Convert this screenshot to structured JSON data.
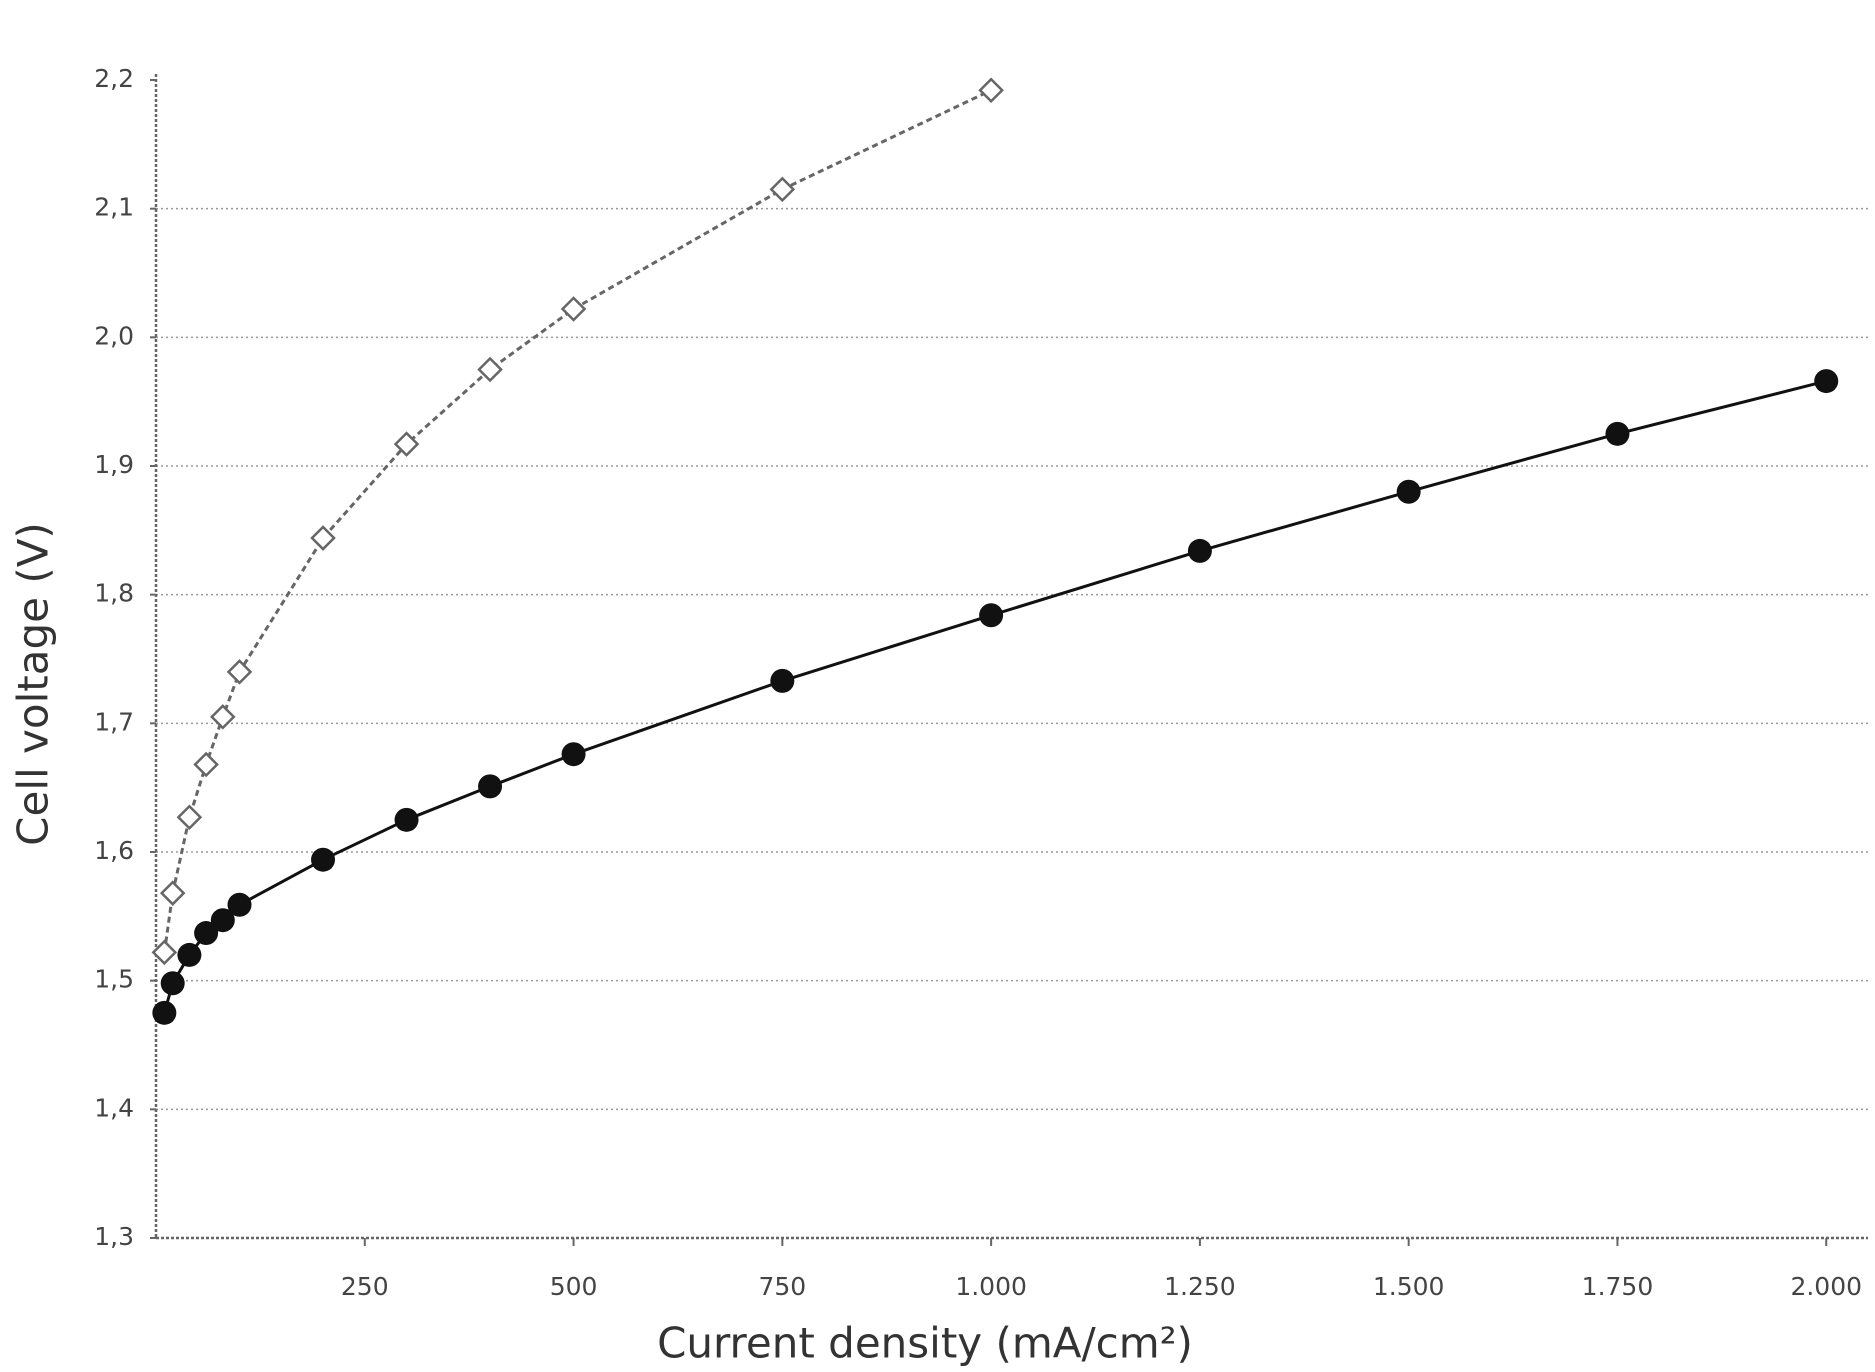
{
  "chart_data": {
    "type": "line",
    "y_label": "Cell voltage (V)",
    "x_label": "Current density (mA/cm²)",
    "xlim": [
      0,
      2050
    ],
    "ylim": [
      1.3,
      2.2
    ],
    "xticks": [
      250,
      500,
      750,
      {
        "value": 1000,
        "label": "1.000"
      },
      {
        "value": 1250,
        "label": "1.250"
      },
      {
        "value": 1500,
        "label": "1.500"
      },
      {
        "value": 1750,
        "label": "1.750"
      },
      {
        "value": 2000,
        "label": "2.000"
      }
    ],
    "yticks": [
      {
        "value": 1.3,
        "label": "1,3"
      },
      {
        "value": 1.4,
        "label": "1,4"
      },
      {
        "value": 1.5,
        "label": "1,5"
      },
      {
        "value": 1.6,
        "label": "1,6"
      },
      {
        "value": 1.7,
        "label": "1,7"
      },
      {
        "value": 1.8,
        "label": "1,8"
      },
      {
        "value": 1.9,
        "label": "1,9"
      },
      {
        "value": 2.0,
        "label": "2,0"
      },
      {
        "value": 2.1,
        "label": "2,1"
      },
      {
        "value": 2.2,
        "label": "2,2"
      }
    ],
    "grid": true,
    "series": [
      {
        "color": "#666666",
        "marker": "open-diamond",
        "dashed": true,
        "x": [
          10,
          20,
          40,
          60,
          80,
          100,
          200,
          300,
          400,
          500,
          750,
          1000
        ],
        "values": [
          1.522,
          1.568,
          1.627,
          1.668,
          1.705,
          1.74,
          1.844,
          1.917,
          1.975,
          2.022,
          2.115,
          2.192
        ]
      },
      {
        "color": "#111111",
        "marker": "filled-circle",
        "dashed": false,
        "x": [
          10,
          20,
          40,
          60,
          80,
          100,
          200,
          300,
          400,
          500,
          750,
          1000,
          1250,
          1500,
          1750,
          2000
        ],
        "values": [
          1.475,
          1.498,
          1.52,
          1.537,
          1.547,
          1.559,
          1.594,
          1.625,
          1.651,
          1.676,
          1.733,
          1.784,
          1.834,
          1.88,
          1.925,
          1.966
        ]
      }
    ]
  }
}
